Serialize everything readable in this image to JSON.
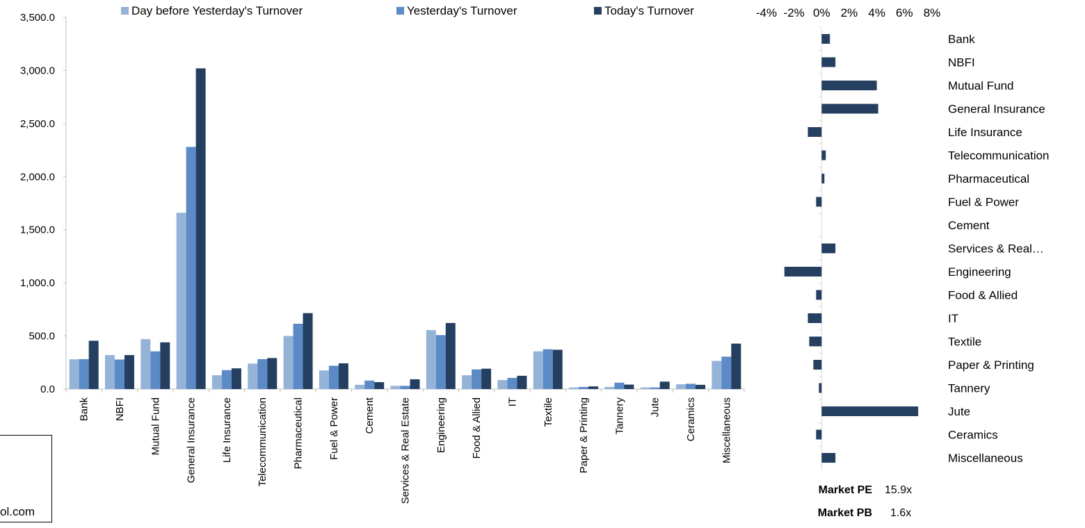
{
  "legend": {
    "day_before": "Day before Yesterday's Turnover",
    "yesterday": "Yesterday's Turnover",
    "today": "Today's Turnover"
  },
  "colors": {
    "day_before": "#95b3d7",
    "yesterday": "#5b8ac6",
    "today": "#243f60"
  },
  "chart_data": [
    {
      "type": "bar",
      "categories": [
        "Bank",
        "NBFI",
        "Mutual Fund",
        "General Insurance",
        "Life Insurance",
        "Telecommunication",
        "Pharmaceutical",
        "Fuel & Power",
        "Cement",
        "Services & Real Estate",
        "Engineering",
        "Food & Allied",
        "IT",
        "Textile",
        "Paper & Printing",
        "Tannery",
        "Jute",
        "Ceramics",
        "Miscellaneous"
      ],
      "series": [
        {
          "name": "Day before Yesterday's Turnover",
          "values": [
            280,
            320,
            470,
            1660,
            130,
            240,
            500,
            175,
            40,
            30,
            555,
            130,
            85,
            355,
            15,
            20,
            15,
            45,
            265
          ]
        },
        {
          "name": "Yesterday's Turnover",
          "values": [
            282,
            278,
            355,
            2280,
            178,
            282,
            615,
            220,
            80,
            30,
            508,
            185,
            105,
            375,
            20,
            60,
            15,
            50,
            305
          ]
        },
        {
          "name": "Today's Turnover",
          "values": [
            455,
            320,
            440,
            3020,
            195,
            292,
            715,
            242,
            65,
            92,
            622,
            192,
            125,
            370,
            25,
            42,
            70,
            40,
            428
          ]
        }
      ],
      "ylim": [
        0,
        3500
      ],
      "yticks": [
        "3,500.0",
        "3,000.0",
        "2,500.0",
        "2,000.0",
        "1,500.0",
        "1,000.0",
        "500.0",
        "0.0"
      ],
      "grid": false,
      "legend_position": "top"
    },
    {
      "type": "bar",
      "orientation": "horizontal",
      "categories": [
        "Bank",
        "NBFI",
        "Mutual Fund",
        "General Insurance",
        "Life Insurance",
        "Telecommunication",
        "Pharmaceutical",
        "Fuel & Power",
        "Cement",
        "Services & Real…",
        "Engineering",
        "Food & Allied",
        "IT",
        "Textile",
        "Paper & Printing",
        "Tannery",
        "Jute",
        "Ceramics",
        "Miscellaneous"
      ],
      "values": [
        0.6,
        1.0,
        4.0,
        4.1,
        -1.0,
        0.3,
        0.2,
        -0.4,
        0.0,
        1.0,
        -2.7,
        -0.4,
        -1.0,
        -0.9,
        -0.6,
        -0.2,
        7.0,
        -0.4,
        1.0
      ],
      "xticks": [
        "-4%",
        "-2%",
        "0%",
        "2%",
        "4%",
        "6%",
        "8%"
      ],
      "xlim": [
        -4,
        8
      ],
      "color": "#243f60"
    }
  ],
  "market": {
    "pe_label": "Market PE",
    "pe_value": "15.9x",
    "pb_label": "Market PB",
    "pb_value": "1.6x"
  },
  "footer": {
    "text": "ol.com"
  }
}
